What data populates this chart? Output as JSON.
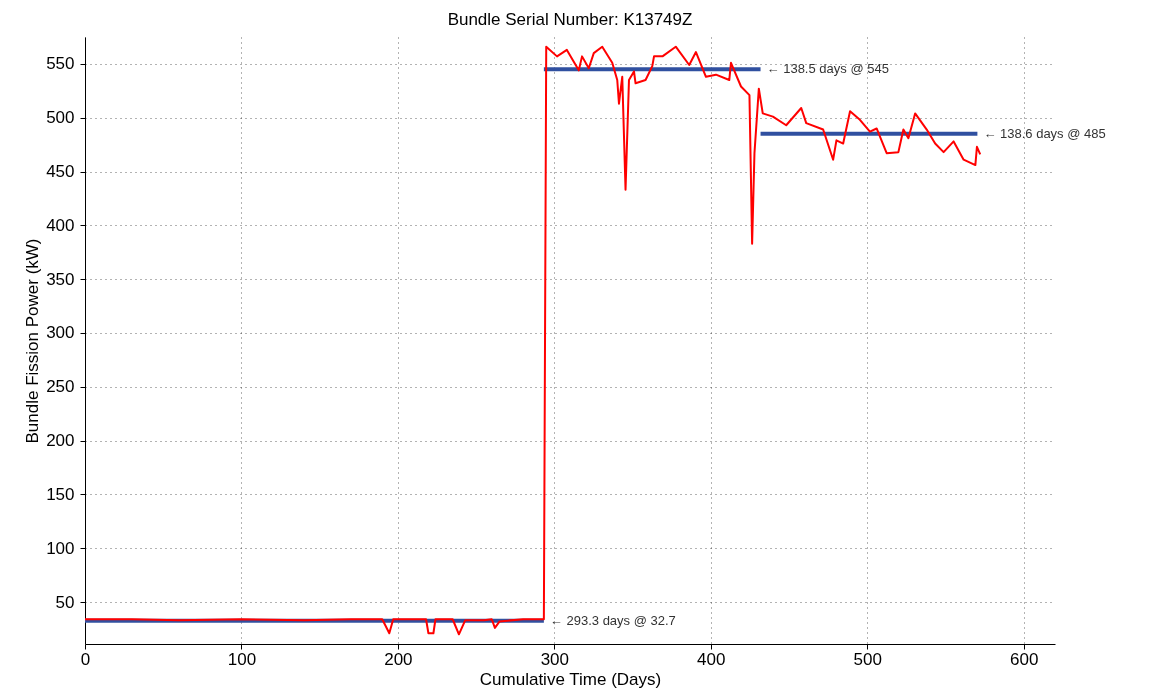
{
  "chart_data": {
    "type": "line",
    "title": "Bundle Serial Number: K13749Z",
    "xlabel": "Cumulative Time (Days)",
    "ylabel": "Bundle Fission Power (kW)",
    "xlim": [
      0,
      620
    ],
    "ylim": [
      11,
      575
    ],
    "xticks": [
      0,
      100,
      200,
      300,
      400,
      500,
      600
    ],
    "yticks": [
      50,
      100,
      150,
      200,
      250,
      300,
      350,
      400,
      450,
      500,
      550
    ],
    "grid": true,
    "legend": false,
    "series": [
      {
        "color": "#3050a0",
        "x": [
          0,
          293.3
        ],
        "values": [
          32.7,
          32.7
        ]
      },
      {
        "color": "#3050a0",
        "x": [
          293.3,
          431.8
        ],
        "values": [
          545,
          545
        ]
      },
      {
        "color": "#3050a0",
        "x": [
          431.8,
          570.4
        ],
        "values": [
          485,
          485
        ]
      },
      {
        "color": "#ff0000",
        "x": [
          0,
          30,
          60,
          100,
          140,
          170,
          190,
          194.5,
          197,
          200,
          210,
          218,
          219.5,
          222.7,
          224,
          235,
          239,
          243,
          255,
          260,
          262,
          265,
          280,
          293.3,
          294.8,
          301.7,
          308,
          315.6,
          317.7,
          322,
          325.2,
          330.6,
          337,
          340.2,
          341.3,
          343.4,
          345.5,
          347.7,
          350.9,
          351.9,
          358.3,
          362.6,
          363.7,
          369.1,
          377.6,
          386.2,
          390.5,
          396.9,
          403.3,
          411.8,
          412.9,
          419.3,
          424.7,
          426.4,
          427.9,
          430.7,
          433.2,
          439.7,
          448.2,
          457.8,
          461,
          471.8,
          478.2,
          480.3,
          484.6,
          489,
          495.3,
          501.7,
          506,
          512.4,
          519.9,
          523.1,
          526.3,
          530.6,
          538,
          543.4,
          548.8,
          555.2,
          561.6,
          569.1,
          570.1,
          572.2
        ],
        "values": [
          34,
          34,
          33,
          34,
          33,
          34,
          34,
          21,
          34,
          34,
          34,
          34,
          21,
          21,
          34,
          34,
          20,
          33,
          33,
          34,
          26,
          32,
          34,
          34,
          566,
          557,
          563,
          544,
          557,
          546,
          560,
          566,
          551,
          535,
          513,
          538,
          433,
          535,
          543,
          532,
          535,
          548,
          557,
          557,
          566,
          549,
          561,
          538,
          540,
          535,
          551,
          529,
          521,
          383,
          467,
          527,
          504,
          501,
          493,
          509,
          495,
          489,
          461,
          479,
          476,
          506,
          498,
          487,
          490,
          467,
          468,
          489,
          481,
          504,
          489,
          476,
          468,
          478,
          461,
          456,
          473,
          466
        ]
      }
    ],
    "annotations": [
      {
        "text": "← 293.3 days @ 32.7",
        "x": 293.3,
        "y": 32.7
      },
      {
        "text": "← 138.5 days @ 545",
        "x": 431.8,
        "y": 545
      },
      {
        "text": "← 138.6 days @ 485",
        "x": 570.4,
        "y": 485
      }
    ]
  }
}
